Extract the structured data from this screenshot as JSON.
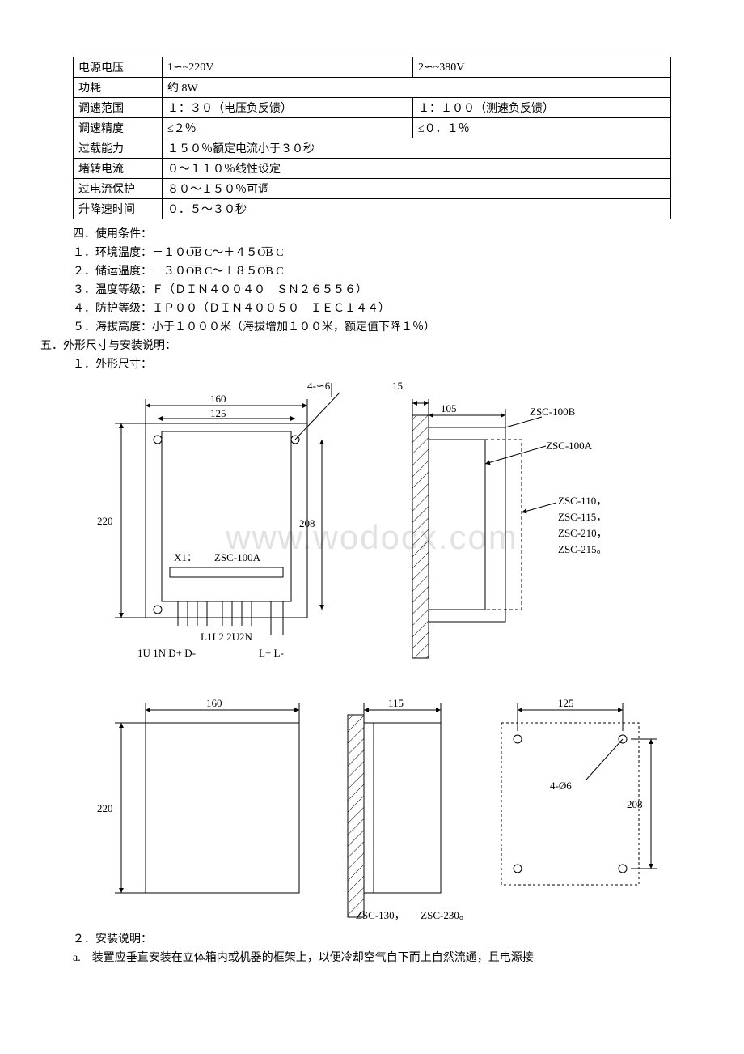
{
  "table": {
    "rows": [
      {
        "label": "电源电压",
        "c1": "1∽~220V",
        "c2": "2∽~380V"
      },
      {
        "label": "功耗",
        "c1": "约 8W",
        "span": true
      },
      {
        "label": "调速范围",
        "c1": "１：３０（电压负反馈）",
        "c2": "１：１００（测速负反馈）"
      },
      {
        "label": "调速精度",
        "c1": "≤２％",
        "c2": "≤０．１％"
      },
      {
        "label": "过载能力",
        "c1": "１５０％额定电流小于３０秒",
        "span": true
      },
      {
        "label": "堵转电流",
        "c1": "０～１１０％线性设定",
        "span": true
      },
      {
        "label": "过电流保护",
        "c1": "８０～１５０％可调",
        "span": true
      },
      {
        "label": "升降速时间",
        "c1": "０．５～３０秒",
        "span": true
      }
    ]
  },
  "section4": {
    "title": "四．使用条件：",
    "items": [
      "１．环境温度：－１０O͞B̅ C～＋４５O͞B̅ C",
      "２．储运温度：－３０O͞B̅ C～＋８５O͞B̅ C",
      "３．温度等级：Ｆ（ＤＩＮ４００４０　ＳＮ２６５５６）",
      "４．防护等级：ＩＰ００（ＤＩＮ４００５０　ＩＥＣ１４４）",
      "５．海拔高度：小于１０００米（海拔增加１００米，额定值下降１％）"
    ]
  },
  "section5": {
    "title": "五．外形尺寸与安装说明：",
    "sub1": "１．外形尺寸：",
    "sub2": "２．安装说明：",
    "install_a": "a.　装置应垂直安装在立体箱内或机器的框架上，以便冷却空气自下而上自然流通，且电源接"
  },
  "dims": {
    "d160": "160",
    "d125": "125",
    "d220": "220",
    "d208": "208",
    "d4phi6": "4-∽6",
    "d4phi6b": "4-Ø6",
    "d15": "15",
    "d105": "105",
    "d115": "115",
    "zsc100b": "ZSC-100B",
    "zsc100a": "ZSC-100A",
    "zsc_list": "ZSC-110，\nZSC-115，\nZSC-210，\nZSC-215。",
    "x1": "X1：",
    "zsc100a_center": "ZSC-100A",
    "terminals1": "L1L2 2U2N",
    "terminals2": "1U 1N D+ D-",
    "terminals3": "L+   L-",
    "zsc130": "ZSC-130，　　ZSC-230。"
  },
  "watermark": "www.wodocx.com",
  "colors": {
    "text": "#000000",
    "bg": "#ffffff",
    "border": "#000000",
    "watermark": "#e2e2e2"
  }
}
